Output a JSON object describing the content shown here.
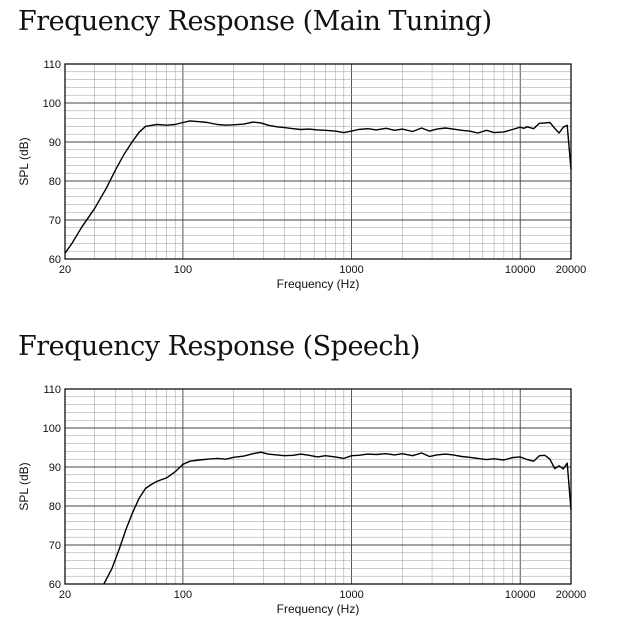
{
  "chart_data": [
    {
      "type": "line",
      "title": "Frequency Response (Main Tuning)",
      "xlabel": "Frequency (Hz)",
      "ylabel": "SPL (dB)",
      "xscale": "log",
      "xlim": [
        20,
        20000
      ],
      "ylim": [
        60,
        110
      ],
      "xticks": [
        "20",
        "100",
        "1000",
        "10000",
        "20000"
      ],
      "yticks": [
        "60",
        "70",
        "80",
        "90",
        "100",
        "110"
      ],
      "grid": true,
      "series": [
        {
          "x": [
            20,
            22,
            25,
            30,
            35,
            40,
            45,
            50,
            55,
            60,
            70,
            80,
            90,
            100,
            110,
            125,
            140,
            160,
            180,
            200,
            230,
            260,
            290,
            320,
            360,
            400,
            450,
            500,
            560,
            630,
            700,
            800,
            900,
            1000,
            1100,
            1250,
            1400,
            1600,
            1800,
            2000,
            2300,
            2600,
            2900,
            3200,
            3600,
            4000,
            4500,
            5000,
            5600,
            6300,
            7000,
            8000,
            9000,
            10000,
            10500,
            11000,
            12000,
            13000,
            14000,
            15000,
            16000,
            17000,
            18000,
            19000,
            20000
          ],
          "y": [
            61.5,
            64,
            68,
            73,
            78,
            83,
            87,
            90,
            92.5,
            94,
            94.5,
            94.3,
            94.5,
            95,
            95.4,
            95.2,
            95,
            94.5,
            94.3,
            94.4,
            94.6,
            95.1,
            94.9,
            94.3,
            93.9,
            93.7,
            93.4,
            93.2,
            93.3,
            93.1,
            93.0,
            92.8,
            92.4,
            92.8,
            93.2,
            93.4,
            93.1,
            93.5,
            93.0,
            93.3,
            92.7,
            93.6,
            92.8,
            93.3,
            93.6,
            93.3,
            93.0,
            92.8,
            92.3,
            93.0,
            92.4,
            92.6,
            93.2,
            93.8,
            93.5,
            93.9,
            93.4,
            94.8,
            94.9,
            95.0,
            93.5,
            92.3,
            93.8,
            94.3,
            83
          ]
        }
      ]
    },
    {
      "type": "line",
      "title": "Frequency Response (Speech)",
      "xlabel": "Frequency (Hz)",
      "ylabel": "SPL (dB)",
      "xscale": "log",
      "xlim": [
        20,
        20000
      ],
      "ylim": [
        60,
        110
      ],
      "xticks": [
        "20",
        "100",
        "1000",
        "10000",
        "20000"
      ],
      "yticks": [
        "60",
        "70",
        "80",
        "90",
        "100",
        "110"
      ],
      "grid": true,
      "series": [
        {
          "x": [
            34,
            38,
            42,
            46,
            50,
            55,
            60,
            65,
            70,
            80,
            90,
            100,
            110,
            125,
            140,
            160,
            180,
            200,
            230,
            260,
            290,
            320,
            360,
            400,
            450,
            500,
            560,
            630,
            700,
            800,
            900,
            1000,
            1100,
            1250,
            1400,
            1600,
            1800,
            2000,
            2300,
            2600,
            2900,
            3200,
            3600,
            4000,
            4500,
            5000,
            5600,
            6300,
            7000,
            8000,
            9000,
            10000,
            11000,
            12000,
            13000,
            14000,
            15000,
            16000,
            17000,
            18000,
            19000,
            20000
          ],
          "y": [
            60,
            64,
            69,
            74,
            78,
            82,
            84.5,
            85.5,
            86.3,
            87.2,
            88.8,
            90.7,
            91.5,
            91.8,
            92.0,
            92.2,
            92.0,
            92.5,
            92.8,
            93.4,
            93.8,
            93.3,
            93.1,
            92.9,
            93.0,
            93.3,
            93.0,
            92.6,
            92.9,
            92.6,
            92.2,
            92.9,
            93.0,
            93.3,
            93.2,
            93.4,
            93.1,
            93.4,
            92.9,
            93.6,
            92.7,
            93.1,
            93.3,
            93.1,
            92.7,
            92.5,
            92.2,
            91.9,
            92.1,
            91.8,
            92.4,
            92.6,
            91.9,
            91.5,
            92.9,
            93.0,
            92.0,
            89.6,
            90.3,
            89.5,
            91.0,
            79
          ]
        }
      ]
    }
  ]
}
